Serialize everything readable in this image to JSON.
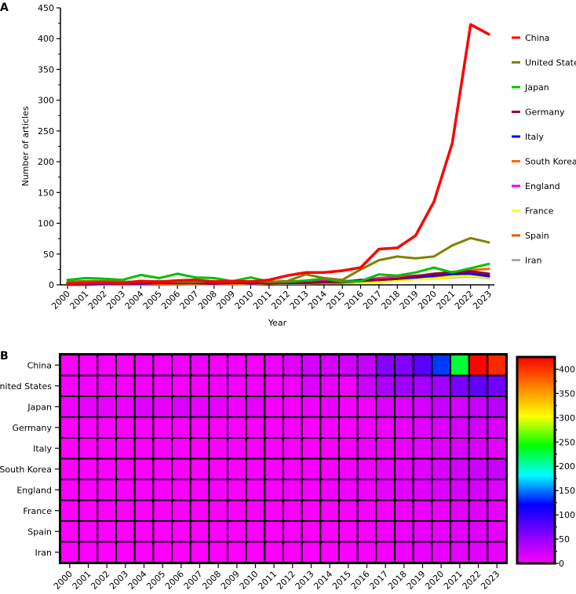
{
  "chart_data": [
    {
      "panel_label": "A",
      "type": "line",
      "xlabel": "Year",
      "ylabel": "Number of articles",
      "ylim": [
        0,
        450
      ],
      "yticks": [
        0,
        50,
        100,
        150,
        200,
        250,
        300,
        350,
        400,
        450
      ],
      "categories": [
        "2000",
        "2001",
        "2002",
        "2003",
        "2004",
        "2005",
        "2006",
        "2007",
        "2008",
        "2009",
        "2010",
        "2011",
        "2012",
        "2013",
        "2014",
        "2015",
        "2016",
        "2017",
        "2018",
        "2019",
        "2020",
        "2021",
        "2022",
        "2023"
      ],
      "legend_position": "right",
      "series": [
        {
          "name": "China",
          "color": "#ff0000",
          "values": [
            2,
            3,
            4,
            3,
            6,
            5,
            7,
            8,
            5,
            6,
            5,
            8,
            15,
            20,
            20,
            23,
            28,
            58,
            60,
            80,
            135,
            230,
            423,
            407
          ]
        },
        {
          "name": "United States",
          "color": "#808000",
          "values": [
            5,
            6,
            6,
            5,
            5,
            6,
            5,
            5,
            6,
            5,
            6,
            5,
            6,
            17,
            11,
            8,
            25,
            40,
            46,
            43,
            46,
            64,
            76,
            69
          ]
        },
        {
          "name": "Japan",
          "color": "#00c000",
          "values": [
            8,
            11,
            10,
            8,
            16,
            11,
            18,
            12,
            11,
            6,
            12,
            5,
            5,
            7,
            10,
            5,
            6,
            17,
            15,
            20,
            28,
            20,
            27,
            34
          ]
        },
        {
          "name": "Germany",
          "color": "#990033",
          "values": [
            2,
            2,
            3,
            2,
            3,
            3,
            4,
            3,
            2,
            3,
            3,
            2,
            4,
            3,
            5,
            4,
            6,
            8,
            10,
            14,
            18,
            20,
            22,
            18
          ]
        },
        {
          "name": "Italy",
          "color": "#0000ff",
          "values": [
            1,
            1,
            2,
            2,
            2,
            3,
            3,
            3,
            2,
            4,
            2,
            3,
            3,
            3,
            4,
            4,
            8,
            8,
            10,
            12,
            15,
            18,
            18,
            14
          ]
        },
        {
          "name": "South Korea",
          "color": "#ff6600",
          "values": [
            0,
            0,
            1,
            1,
            1,
            1,
            2,
            2,
            2,
            2,
            3,
            3,
            3,
            4,
            4,
            5,
            6,
            9,
            11,
            14,
            18,
            21,
            24,
            26
          ]
        },
        {
          "name": "England",
          "color": "#ff00cc",
          "values": [
            2,
            2,
            2,
            3,
            3,
            3,
            3,
            3,
            4,
            3,
            4,
            4,
            5,
            5,
            6,
            6,
            7,
            11,
            13,
            15,
            16,
            18,
            20,
            16
          ]
        },
        {
          "name": "France",
          "color": "#ffff00",
          "values": [
            1,
            1,
            1,
            1,
            1,
            2,
            2,
            2,
            2,
            2,
            2,
            2,
            3,
            3,
            3,
            3,
            4,
            5,
            7,
            9,
            10,
            13,
            15,
            12
          ]
        },
        {
          "name": "Spain",
          "color": "#cc6600",
          "values": [
            0,
            1,
            1,
            1,
            1,
            1,
            1,
            2,
            2,
            2,
            2,
            2,
            3,
            3,
            3,
            3,
            4,
            6,
            8,
            10,
            12,
            14,
            16,
            13
          ]
        },
        {
          "name": "Iran",
          "color": "#aaaaaa",
          "values": [
            0,
            0,
            0,
            0,
            0,
            0,
            1,
            1,
            1,
            1,
            1,
            2,
            2,
            2,
            3,
            3,
            4,
            5,
            7,
            9,
            10,
            12,
            14,
            11
          ]
        }
      ]
    },
    {
      "panel_label": "B",
      "type": "heatmap",
      "rows": [
        "China",
        "United States",
        "Japan",
        "Germany",
        "Italy",
        "South Korea",
        "England",
        "France",
        "Spain",
        "Iran"
      ],
      "columns": [
        "2000",
        "2001",
        "2002",
        "2003",
        "2004",
        "2005",
        "2006",
        "2007",
        "2008",
        "2009",
        "2010",
        "2011",
        "2012",
        "2013",
        "2014",
        "2015",
        "2016",
        "2017",
        "2018",
        "2019",
        "2020",
        "2021",
        "2022",
        "2023"
      ],
      "colorbar_range": [
        0,
        425
      ],
      "colorbar_ticks": [
        0,
        50,
        100,
        150,
        200,
        250,
        300,
        350,
        400
      ],
      "colorbar_colors": [
        "#ff00ff",
        "#8000ff",
        "#0000ff",
        "#00ffff",
        "#00ff00",
        "#ffff00",
        "#ff8000",
        "#ff0000"
      ]
    }
  ]
}
